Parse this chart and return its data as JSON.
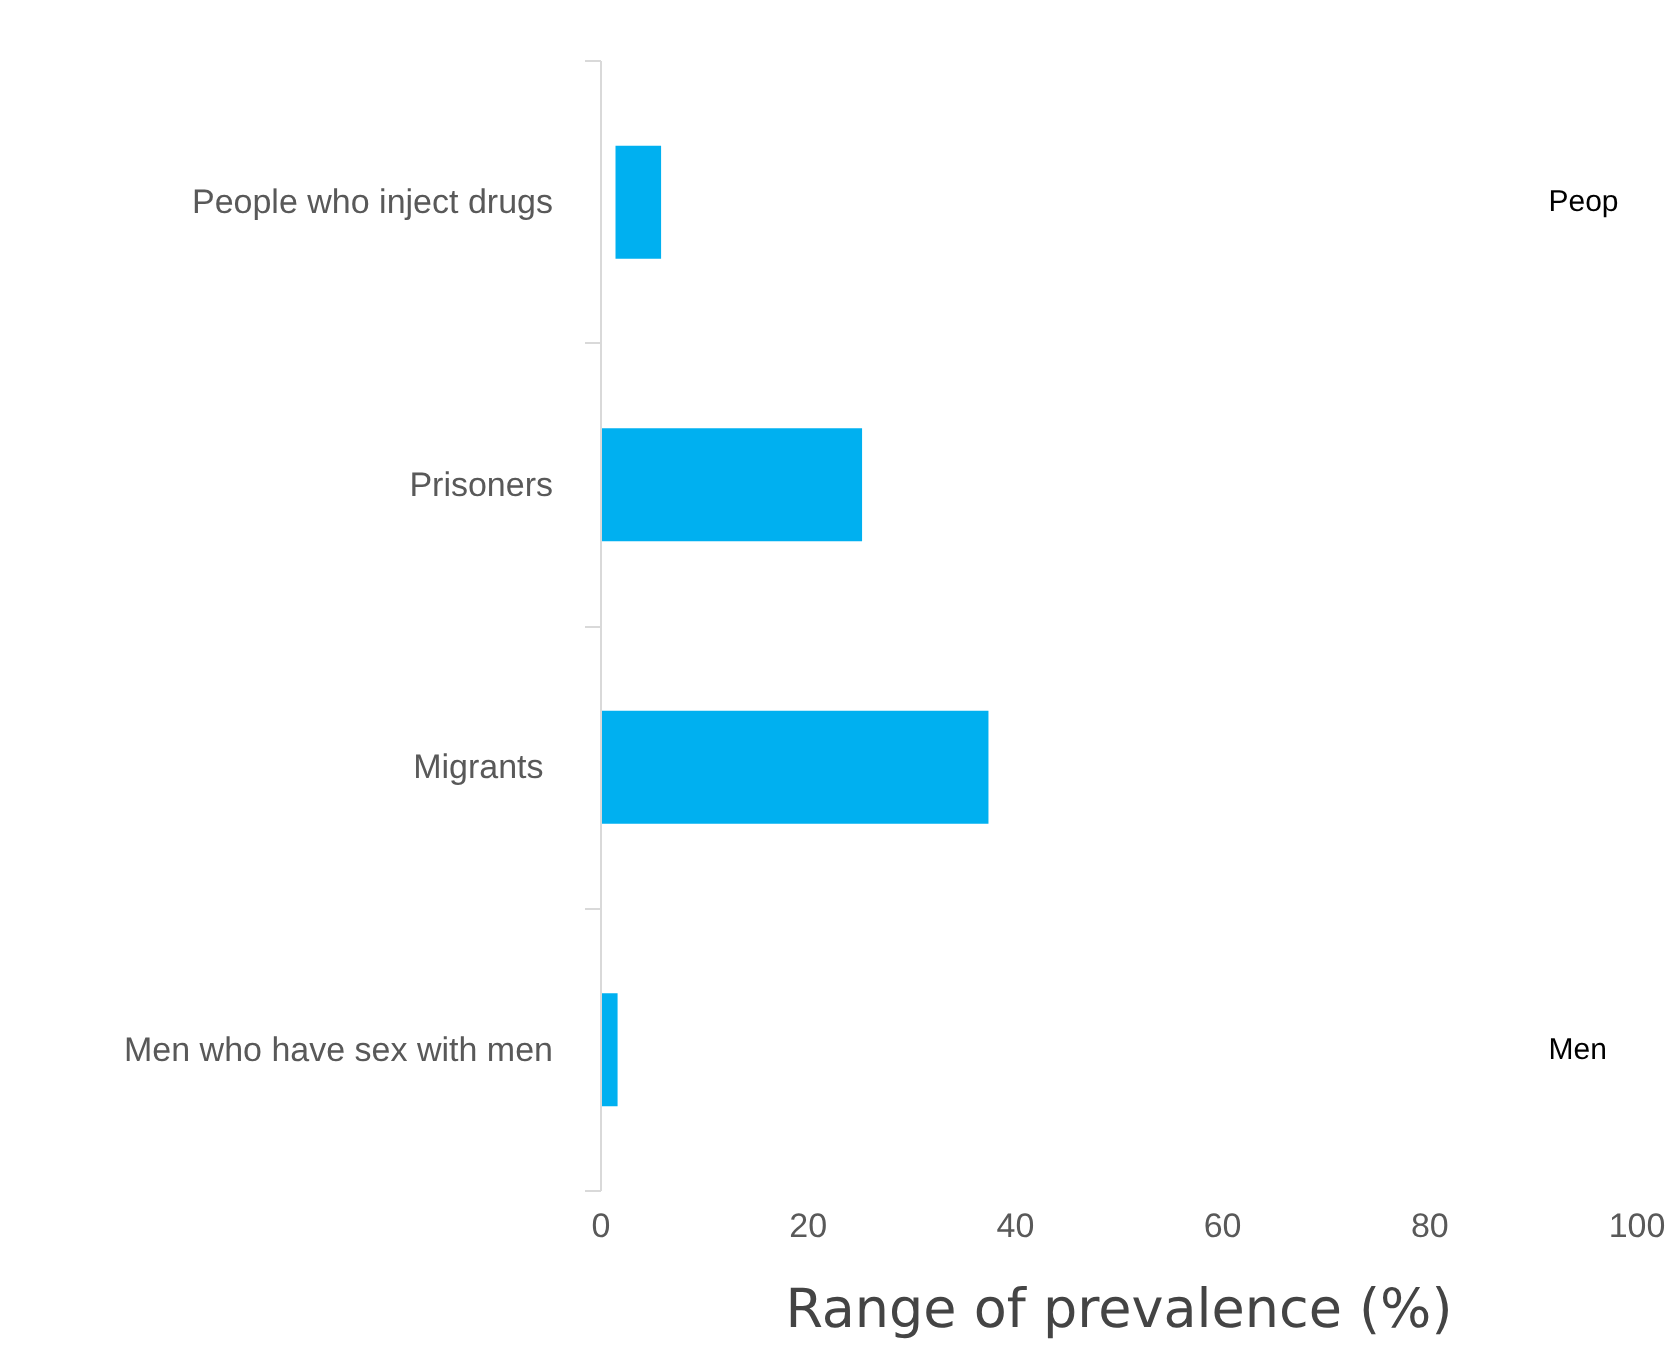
{
  "chart_data": {
    "type": "bar",
    "orientation": "horizontal",
    "xlabel": "Range of prevalence (%)",
    "categories": [
      "People who inject drugs",
      "Prisoners",
      "Migrants ",
      "Men who have sex with men"
    ],
    "base": [
      1.4,
      0,
      0,
      0
    ],
    "values": [
      4.4,
      25.2,
      37.4,
      1.6
    ],
    "color": "#00b0f0",
    "xlim": [
      0,
      100
    ],
    "xticks": [
      0,
      20,
      40,
      60,
      80,
      100
    ],
    "grid": false,
    "annotations": [
      "Peop",
      "Men"
    ]
  }
}
